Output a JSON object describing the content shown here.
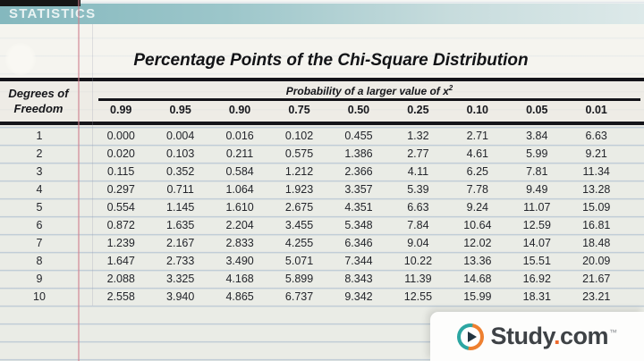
{
  "banner": {
    "label": "STATISTICS"
  },
  "table": {
    "title": "Percentage Points of the Chi-Square Distribution",
    "row_header_line1": "Degrees of",
    "row_header_line2": "Freedom",
    "group_header": "Probability of a larger value of x",
    "group_header_sup": "2",
    "columns": [
      "0.99",
      "0.95",
      "0.90",
      "0.75",
      "0.50",
      "0.25",
      "0.10",
      "0.05",
      "0.01"
    ],
    "rows": [
      {
        "df": "1",
        "values": [
          "0.000",
          "0.004",
          "0.016",
          "0.102",
          "0.455",
          "1.32",
          "2.71",
          "3.84",
          "6.63"
        ]
      },
      {
        "df": "2",
        "values": [
          "0.020",
          "0.103",
          "0.211",
          "0.575",
          "1.386",
          "2.77",
          "4.61",
          "5.99",
          "9.21"
        ]
      },
      {
        "df": "3",
        "values": [
          "0.115",
          "0.352",
          "0.584",
          "1.212",
          "2.366",
          "4.11",
          "6.25",
          "7.81",
          "11.34"
        ]
      },
      {
        "df": "4",
        "values": [
          "0.297",
          "0.711",
          "1.064",
          "1.923",
          "3.357",
          "5.39",
          "7.78",
          "9.49",
          "13.28"
        ]
      },
      {
        "df": "5",
        "values": [
          "0.554",
          "1.145",
          "1.610",
          "2.675",
          "4.351",
          "6.63",
          "9.24",
          "11.07",
          "15.09"
        ]
      },
      {
        "df": "6",
        "values": [
          "0.872",
          "1.635",
          "2.204",
          "3.455",
          "5.348",
          "7.84",
          "10.64",
          "12.59",
          "16.81"
        ]
      },
      {
        "df": "7",
        "values": [
          "1.239",
          "2.167",
          "2.833",
          "4.255",
          "6.346",
          "9.04",
          "12.02",
          "14.07",
          "18.48"
        ]
      },
      {
        "df": "8",
        "values": [
          "1.647",
          "2.733",
          "3.490",
          "5.071",
          "7.344",
          "10.22",
          "13.36",
          "15.51",
          "20.09"
        ]
      },
      {
        "df": "9",
        "values": [
          "2.088",
          "3.325",
          "4.168",
          "5.899",
          "8.343",
          "11.39",
          "14.68",
          "16.92",
          "21.67"
        ]
      },
      {
        "df": "10",
        "values": [
          "2.558",
          "3.940",
          "4.865",
          "6.737",
          "9.342",
          "12.55",
          "15.99",
          "18.31",
          "23.21"
        ]
      }
    ]
  },
  "logo": {
    "brand_part1": "Study",
    "brand_dot": ".",
    "brand_part2": "com",
    "trademark": "™"
  },
  "colors": {
    "paper": "#eaece6",
    "banner_teal": "#8abdc2",
    "topbar_black": "#161616",
    "margin_line_pink": "#cd7d8c",
    "rule_black": "#141419",
    "logo_teal": "#2ca6a2",
    "logo_orange": "#ee8030",
    "logo_text": "#3e4246",
    "logo_dot": "#ee6a2d"
  }
}
